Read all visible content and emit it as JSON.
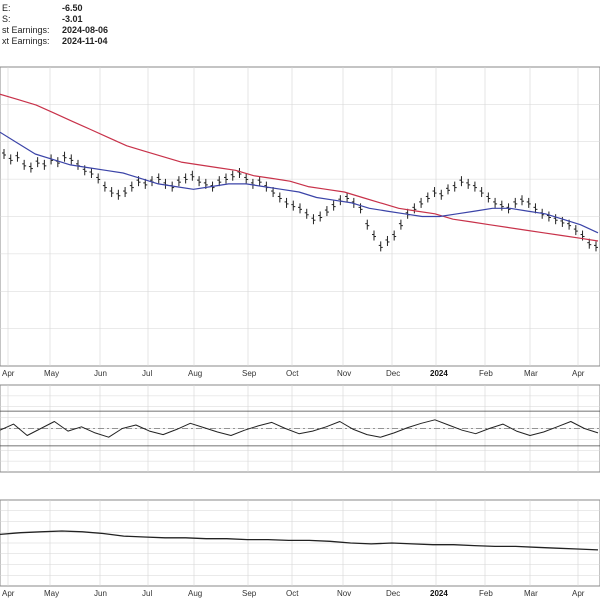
{
  "stats": [
    {
      "label": "E:",
      "value": "-6.50"
    },
    {
      "label": "S:",
      "value": "-3.01"
    },
    {
      "label": "st Earnings:",
      "value": "2024-08-06"
    },
    {
      "label": "xt Earnings:",
      "value": "2024-11-04"
    }
  ],
  "colors": {
    "price": "#222222",
    "ma_long": "#c8324a",
    "ma_short": "#3b44a8",
    "grid": "#d6d6d6",
    "panel_border": "#888888"
  },
  "chart_data": [
    {
      "type": "line",
      "panel": "price",
      "month_labels": [
        "Apr",
        "May",
        "Jun",
        "Jul",
        "Aug",
        "Sep",
        "Oct",
        "Nov",
        "Dec",
        "2024",
        "Feb",
        "Mar",
        "Apr"
      ],
      "series": [
        {
          "role": "price-bars",
          "values": [
            78,
            76,
            77,
            74,
            73,
            75,
            74,
            76,
            75,
            77,
            76,
            74,
            72,
            71,
            69,
            66,
            64,
            63,
            64,
            66,
            68,
            67,
            68,
            69,
            67,
            66,
            68,
            69,
            70,
            68,
            67,
            66,
            68,
            69,
            70,
            71,
            69,
            67,
            68,
            66,
            64,
            62,
            60,
            59,
            58,
            56,
            54,
            55,
            57,
            59,
            61,
            62,
            60,
            58,
            52,
            48,
            44,
            46,
            48,
            52,
            56,
            58,
            60,
            62,
            64,
            63,
            65,
            66,
            68,
            67,
            66,
            64,
            62,
            60,
            59,
            58,
            60,
            61,
            60,
            58,
            56,
            55,
            54,
            53,
            52,
            50,
            48,
            45,
            44
          ]
        },
        {
          "role": "ma-long",
          "values": [
            100,
            98,
            96,
            93,
            90,
            87,
            84,
            81,
            79,
            77,
            75,
            74,
            73,
            72,
            70,
            69,
            68,
            66,
            65,
            64,
            62,
            60,
            58,
            57,
            56,
            54,
            53,
            52,
            51,
            50,
            49,
            48,
            47,
            46
          ]
        },
        {
          "role": "ma-short",
          "values": [
            86,
            82,
            78,
            76,
            74,
            73,
            72,
            71,
            69,
            67,
            66,
            65,
            66,
            67,
            67,
            66,
            65,
            64,
            62,
            61,
            60,
            58,
            57,
            56,
            55,
            55,
            56,
            57,
            58,
            58,
            57,
            56,
            54,
            52,
            49
          ]
        }
      ]
    },
    {
      "type": "line",
      "panel": "oscillator",
      "month_labels": [],
      "series": [
        {
          "role": "oscillator-line",
          "values": [
            48,
            55,
            42,
            50,
            58,
            47,
            52,
            45,
            40,
            50,
            54,
            47,
            43,
            49,
            56,
            51,
            46,
            42,
            48,
            53,
            57,
            50,
            44,
            47,
            52,
            58,
            49,
            43,
            40,
            45,
            51,
            56,
            60,
            54,
            48,
            44,
            50,
            55,
            47,
            42,
            46,
            52,
            58,
            50,
            45
          ]
        }
      ]
    },
    {
      "type": "line",
      "panel": "relative-strength",
      "month_labels": [
        "Apr",
        "May",
        "Jun",
        "Jul",
        "Aug",
        "Sep",
        "Oct",
        "Nov",
        "Dec",
        "2024",
        "Feb",
        "Mar",
        "Apr"
      ],
      "series": [
        {
          "role": "relative-strength-line",
          "values": [
            60,
            62,
            63,
            64,
            63,
            61,
            58,
            57,
            56,
            56,
            55,
            55,
            54,
            54,
            53,
            53,
            52,
            50,
            49,
            50,
            49,
            48,
            48,
            47,
            46,
            46,
            45,
            44,
            43,
            42
          ]
        }
      ]
    }
  ]
}
